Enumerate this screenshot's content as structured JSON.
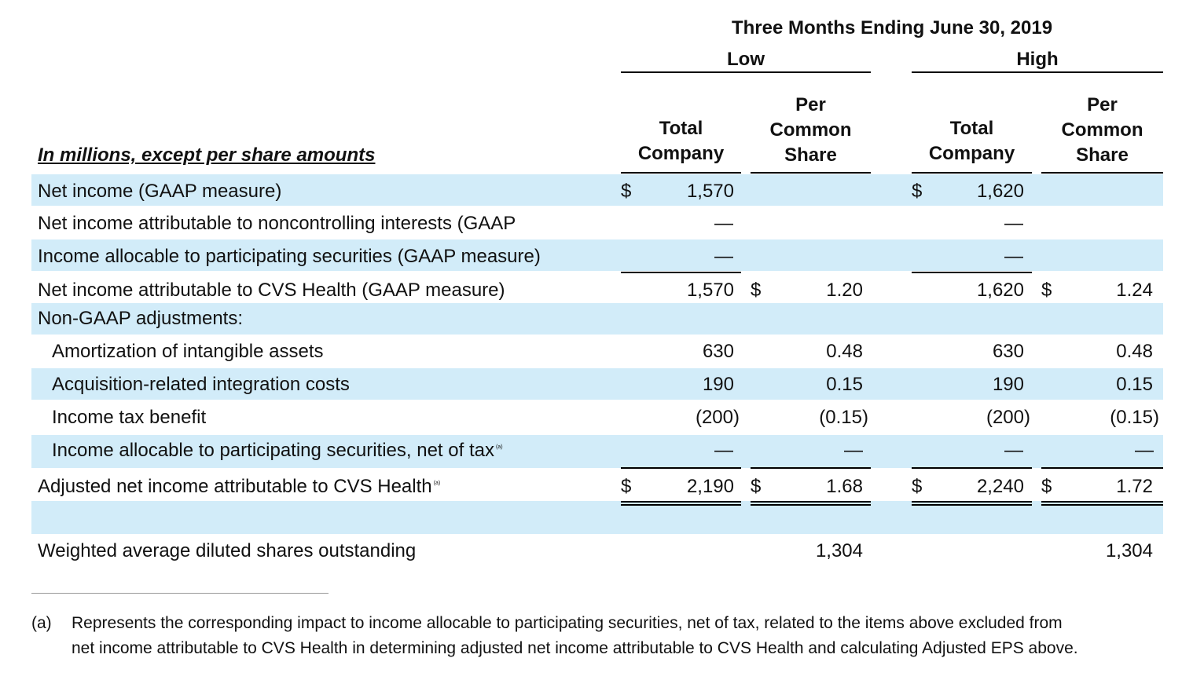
{
  "header": {
    "period": "Three Months Ending June 30, 2019",
    "low": "Low",
    "high": "High",
    "col_total": [
      "Total",
      "Company"
    ],
    "col_per": [
      "Per",
      "Common",
      "Share"
    ],
    "units_label": "In millions, except per share amounts"
  },
  "rows": [
    {
      "label": "Net income (GAAP measure)",
      "low_cur": "$",
      "low_total": "1,570",
      "low_per_cur": "",
      "low_per": "",
      "high_cur": "$",
      "high_total": "1,620",
      "high_per_cur": "",
      "high_per": ""
    },
    {
      "label": "Net income attributable to noncontrolling interests (GAAP",
      "low_cur": "",
      "low_total": "—",
      "low_per_cur": "",
      "low_per": "",
      "high_cur": "",
      "high_total": "—",
      "high_per_cur": "",
      "high_per": ""
    },
    {
      "label": "Income allocable to participating securities (GAAP measure)",
      "low_cur": "",
      "low_total": "—",
      "low_per_cur": "",
      "low_per": "",
      "high_cur": "",
      "high_total": "—",
      "high_per_cur": "",
      "high_per": ""
    },
    {
      "label": "Net income attributable to CVS Health (GAAP measure)",
      "low_cur": "",
      "low_total": "1,570",
      "low_per_cur": "$",
      "low_per": "1.20",
      "high_cur": "",
      "high_total": "1,620",
      "high_per_cur": "$",
      "high_per": "1.24"
    },
    {
      "label": "Non-GAAP adjustments:",
      "low_cur": "",
      "low_total": "",
      "low_per_cur": "",
      "low_per": "",
      "high_cur": "",
      "high_total": "",
      "high_per_cur": "",
      "high_per": ""
    },
    {
      "label": "Amortization of intangible assets",
      "low_cur": "",
      "low_total": "630",
      "low_per_cur": "",
      "low_per": "0.48",
      "high_cur": "",
      "high_total": "630",
      "high_per_cur": "",
      "high_per": "0.48"
    },
    {
      "label": "Acquisition-related integration costs",
      "low_cur": "",
      "low_total": "190",
      "low_per_cur": "",
      "low_per": "0.15",
      "high_cur": "",
      "high_total": "190",
      "high_per_cur": "",
      "high_per": "0.15"
    },
    {
      "label": "Income tax benefit",
      "low_cur": "",
      "low_total": "(200)",
      "low_per_cur": "",
      "low_per": "(0.15)",
      "high_cur": "",
      "high_total": "(200)",
      "high_per_cur": "",
      "high_per": "(0.15)"
    },
    {
      "label": "Income allocable to participating securities, net of tax",
      "sup": "(a)",
      "low_cur": "",
      "low_total": "—",
      "low_per_cur": "",
      "low_per": "—",
      "high_cur": "",
      "high_total": "—",
      "high_per_cur": "",
      "high_per": "—"
    },
    {
      "label": "Adjusted net income attributable to CVS Health",
      "sup": "(a)",
      "low_cur": "$",
      "low_total": "2,190",
      "low_per_cur": "$",
      "low_per": "1.68",
      "high_cur": "$",
      "high_total": "2,240",
      "high_per_cur": "$",
      "high_per": "1.72"
    },
    {
      "label": "",
      "low_cur": "",
      "low_total": "",
      "low_per_cur": "",
      "low_per": "",
      "high_cur": "",
      "high_total": "",
      "high_per_cur": "",
      "high_per": ""
    },
    {
      "label": "Weighted average diluted shares outstanding",
      "low_cur": "",
      "low_total": "",
      "low_per_cur": "",
      "low_per": "1,304",
      "high_cur": "",
      "high_total": "",
      "high_per_cur": "",
      "high_per": "1,304"
    }
  ],
  "footnote": {
    "marker": "(a)",
    "line1": "Represents the corresponding impact to income allocable to participating securities, net of tax, related to the items above excluded from",
    "line2": "net income attributable to CVS Health in determining adjusted net income attributable to CVS Health and calculating Adjusted EPS above."
  }
}
